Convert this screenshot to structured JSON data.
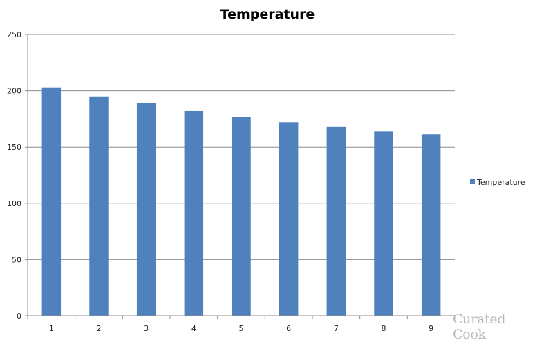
{
  "chart_data": {
    "type": "bar",
    "title": "Temperature",
    "categories": [
      "1",
      "2",
      "3",
      "4",
      "5",
      "6",
      "7",
      "8",
      "9"
    ],
    "series": [
      {
        "name": "Temperature",
        "values": [
          203,
          195,
          189,
          182,
          177,
          172,
          168,
          164,
          161
        ],
        "color": "#4f81bd"
      }
    ],
    "xlabel": "",
    "ylabel": "",
    "ylim": [
      0,
      250
    ],
    "yticks": [
      0,
      50,
      100,
      150,
      200,
      250
    ],
    "grid": true,
    "legend_position": "right"
  },
  "watermark": "Curated Cook"
}
